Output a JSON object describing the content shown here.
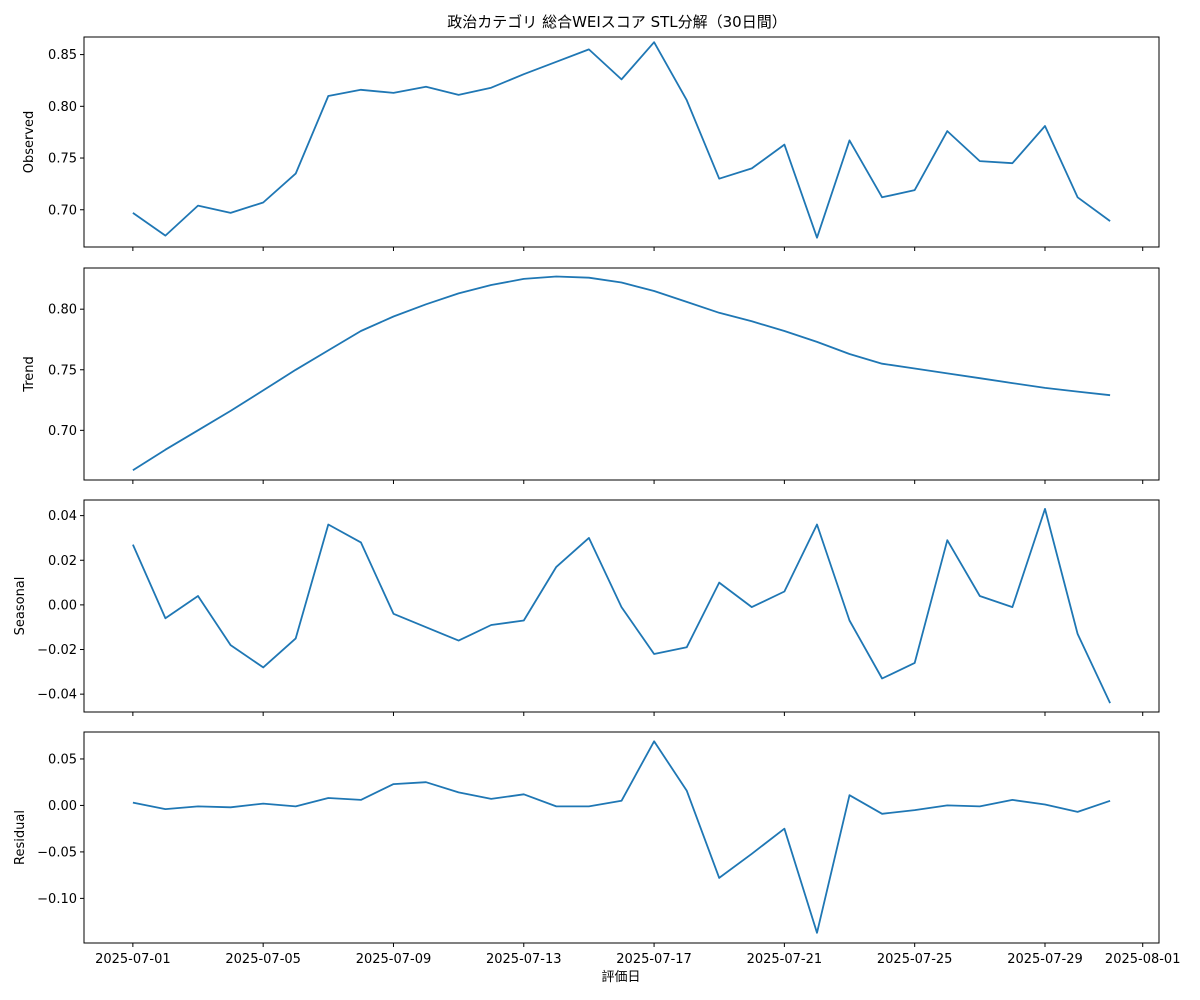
{
  "chart_data": {
    "type": "line",
    "title": "政治カテゴリ 総合WEIスコア STL分解（30日間）",
    "xlabel": "評価日",
    "x": [
      "2025-07-01",
      "2025-07-02",
      "2025-07-03",
      "2025-07-04",
      "2025-07-05",
      "2025-07-06",
      "2025-07-07",
      "2025-07-08",
      "2025-07-09",
      "2025-07-10",
      "2025-07-11",
      "2025-07-12",
      "2025-07-13",
      "2025-07-14",
      "2025-07-15",
      "2025-07-16",
      "2025-07-17",
      "2025-07-18",
      "2025-07-19",
      "2025-07-20",
      "2025-07-21",
      "2025-07-22",
      "2025-07-23",
      "2025-07-24",
      "2025-07-25",
      "2025-07-26",
      "2025-07-27",
      "2025-07-28",
      "2025-07-29",
      "2025-07-30",
      "2025-07-31"
    ],
    "x_ticks": [
      "2025-07-01",
      "2025-07-05",
      "2025-07-09",
      "2025-07-13",
      "2025-07-17",
      "2025-07-21",
      "2025-07-25",
      "2025-07-29",
      "2025-08-01"
    ],
    "xlim": [
      "2025-06-29.5",
      "2025-08-01.5"
    ],
    "color": "#1f77b4",
    "panels": [
      {
        "name": "observed",
        "ylabel": "Observed",
        "ylim": [
          0.664,
          0.867
        ],
        "yticks": [
          0.7,
          0.75,
          0.8,
          0.85
        ],
        "ytick_labels": [
          "0.70",
          "0.75",
          "0.80",
          "0.85"
        ],
        "values": [
          0.697,
          0.675,
          0.704,
          0.697,
          0.707,
          0.735,
          0.81,
          0.816,
          0.813,
          0.819,
          0.811,
          0.818,
          0.831,
          0.843,
          0.855,
          0.826,
          0.862,
          0.806,
          0.73,
          0.74,
          0.763,
          0.673,
          0.767,
          0.712,
          0.719,
          0.776,
          0.747,
          0.745,
          0.781,
          0.712,
          0.689
        ]
      },
      {
        "name": "trend",
        "ylabel": "Trend",
        "ylim": [
          0.659,
          0.834
        ],
        "yticks": [
          0.7,
          0.75,
          0.8
        ],
        "ytick_labels": [
          "0.70",
          "0.75",
          "0.80"
        ],
        "values": [
          0.667,
          0.684,
          0.7,
          0.716,
          0.733,
          0.75,
          0.766,
          0.782,
          0.794,
          0.804,
          0.813,
          0.82,
          0.825,
          0.827,
          0.826,
          0.822,
          0.815,
          0.806,
          0.797,
          0.79,
          0.782,
          0.773,
          0.763,
          0.755,
          0.751,
          0.747,
          0.743,
          0.739,
          0.735,
          0.732,
          0.729
        ]
      },
      {
        "name": "seasonal",
        "ylabel": "Seasonal",
        "ylim": [
          -0.048,
          0.047
        ],
        "yticks": [
          -0.04,
          -0.02,
          0.0,
          0.02,
          0.04
        ],
        "ytick_labels": [
          "−0.04",
          "−0.02",
          "0.00",
          "0.02",
          "0.04"
        ],
        "values": [
          0.027,
          -0.006,
          0.004,
          -0.018,
          -0.028,
          -0.015,
          0.036,
          0.028,
          -0.004,
          -0.01,
          -0.016,
          -0.009,
          -0.007,
          0.017,
          0.03,
          -0.001,
          -0.022,
          -0.019,
          0.01,
          -0.001,
          0.006,
          0.036,
          -0.007,
          -0.033,
          -0.026,
          0.029,
          0.004,
          -0.001,
          0.043,
          -0.013,
          -0.044
        ]
      },
      {
        "name": "residual",
        "ylabel": "Residual",
        "ylim": [
          -0.148,
          0.079
        ],
        "yticks": [
          -0.1,
          -0.05,
          0.0,
          0.05
        ],
        "ytick_labels": [
          "−0.10",
          "−0.05",
          "0.00",
          "0.05"
        ],
        "values": [
          0.003,
          -0.004,
          -0.001,
          -0.002,
          0.002,
          -0.001,
          0.008,
          0.006,
          0.023,
          0.025,
          0.014,
          0.007,
          0.012,
          -0.001,
          -0.001,
          0.005,
          0.069,
          0.016,
          -0.078,
          -0.052,
          -0.025,
          -0.137,
          0.011,
          -0.009,
          -0.005,
          0.0,
          -0.001,
          0.006,
          0.001,
          -0.007,
          0.005
        ]
      }
    ]
  }
}
